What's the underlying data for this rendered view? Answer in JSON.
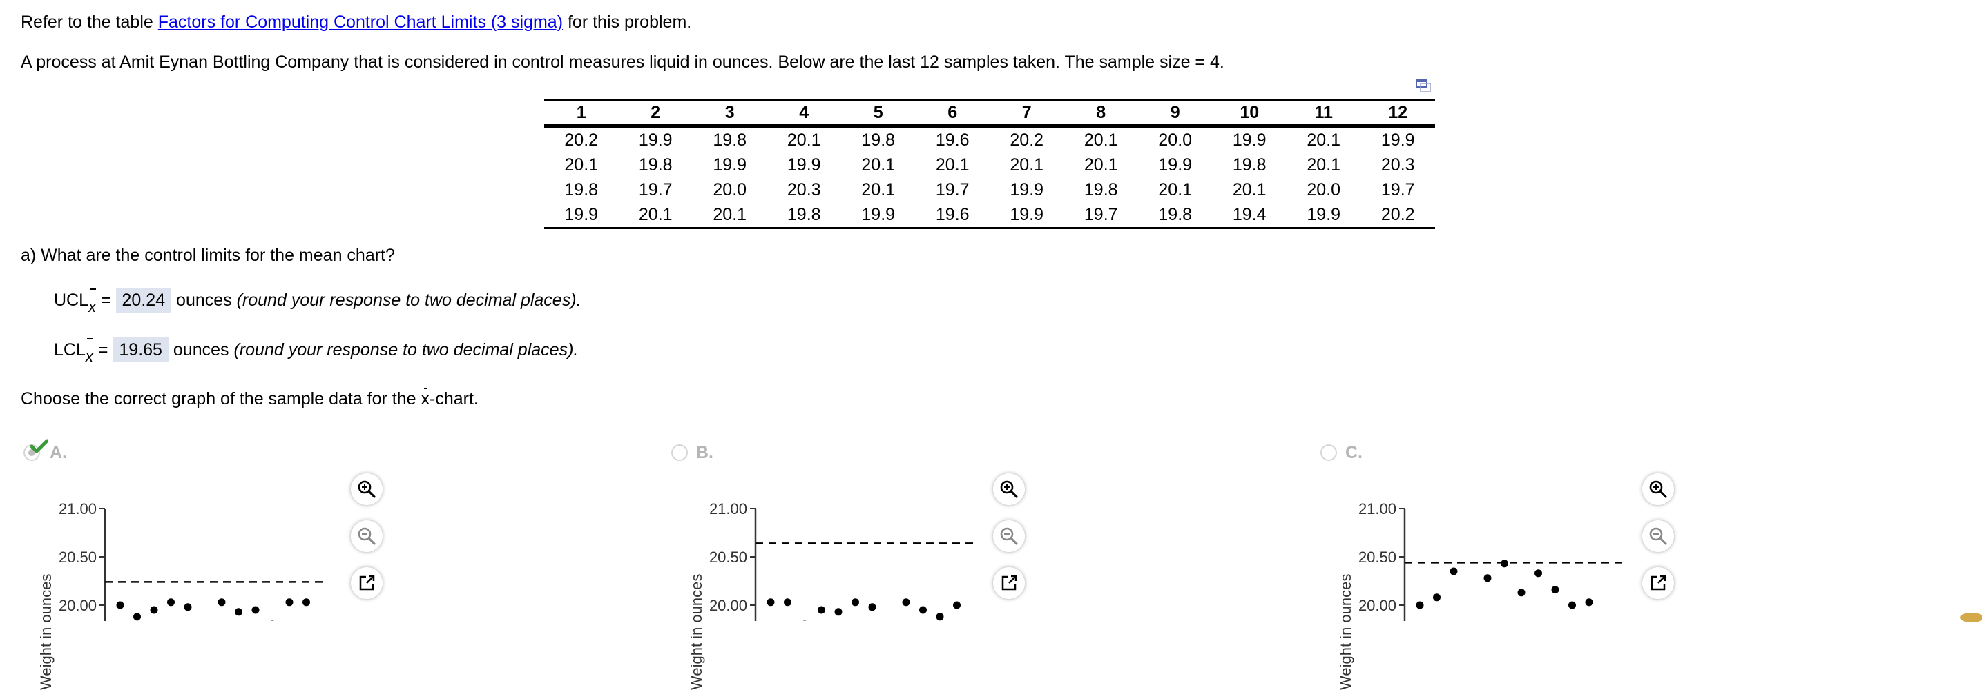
{
  "intro": {
    "prefix": "Refer to the table ",
    "link_text": "Factors for Computing Control Chart Limits (3 sigma)",
    "suffix": " for this problem."
  },
  "problem": {
    "text": "A process at Amit Eynan Bottling Company that is considered in control measures liquid in ounces. Below are the last 12 samples taken. The sample size = 4."
  },
  "table": {
    "headers": [
      "1",
      "2",
      "3",
      "4",
      "5",
      "6",
      "7",
      "8",
      "9",
      "10",
      "11",
      "12"
    ],
    "rows": [
      [
        "20.2",
        "19.9",
        "19.8",
        "20.1",
        "19.8",
        "19.6",
        "20.2",
        "20.1",
        "20.0",
        "19.9",
        "20.1",
        "19.9"
      ],
      [
        "20.1",
        "19.8",
        "19.9",
        "19.9",
        "20.1",
        "20.1",
        "20.1",
        "20.1",
        "19.9",
        "19.8",
        "20.1",
        "20.3"
      ],
      [
        "19.8",
        "19.7",
        "20.0",
        "20.3",
        "20.1",
        "19.7",
        "19.9",
        "19.8",
        "20.1",
        "20.1",
        "20.0",
        "19.7"
      ],
      [
        "19.9",
        "20.1",
        "20.1",
        "19.8",
        "19.9",
        "19.6",
        "19.9",
        "19.7",
        "19.8",
        "19.4",
        "19.9",
        "20.2"
      ]
    ]
  },
  "question_a": {
    "prompt": "a) What are the control limits for the mean chart?",
    "ucl": {
      "label": "UCL",
      "sub": "x",
      "eq": "=",
      "value": "20.24",
      "unit": "ounces",
      "hint": "(round your response to two decimal places)."
    },
    "lcl": {
      "label": "LCL",
      "sub": "x",
      "eq": "=",
      "value": "19.65",
      "unit": "ounces",
      "hint": "(round your response to two decimal places)."
    }
  },
  "choose": {
    "prefix": "Choose the correct graph of the sample data for the ",
    "x": "x",
    "suffix": "-chart."
  },
  "options": [
    {
      "letter": "A.",
      "selected": true,
      "correct": true
    },
    {
      "letter": "B.",
      "selected": false,
      "correct": false
    },
    {
      "letter": "C.",
      "selected": false,
      "correct": false
    }
  ],
  "colors": {
    "link": "#0000ee",
    "answer_bg": "#dde4f0",
    "check": "#3a9a3a",
    "option_label": "#b5b5b5"
  },
  "chart_data": [
    {
      "type": "scatter",
      "option": "A",
      "ylabel": "Weight in ounces",
      "yticks": [
        "21.00",
        "20.50",
        "20.00"
      ],
      "ylim_visible": [
        20.0,
        21.0
      ],
      "reference_line": {
        "style": "dashed",
        "y": 20.24
      },
      "x": [
        1,
        2,
        3,
        4,
        5,
        6,
        7,
        8,
        9,
        10,
        11,
        12
      ],
      "values": [
        20.0,
        19.88,
        19.95,
        20.03,
        19.98,
        19.75,
        20.03,
        19.93,
        19.95,
        19.8,
        20.03,
        20.03
      ]
    },
    {
      "type": "scatter",
      "option": "B",
      "ylabel": "Weight in ounces",
      "yticks": [
        "21.00",
        "20.50",
        "20.00"
      ],
      "ylim_visible": [
        20.0,
        21.0
      ],
      "reference_line": {
        "style": "dashed",
        "y": 20.64
      },
      "x": [
        1,
        2,
        3,
        4,
        5,
        6,
        7,
        8,
        9,
        10,
        11,
        12
      ],
      "values": [
        20.03,
        20.03,
        19.8,
        19.95,
        19.93,
        20.03,
        19.98,
        19.75,
        20.03,
        19.95,
        19.88,
        20.0
      ]
    },
    {
      "type": "scatter",
      "option": "C",
      "ylabel": "Weight in ounces",
      "yticks": [
        "21.00",
        "20.50",
        "20.00"
      ],
      "ylim_visible": [
        20.0,
        21.0
      ],
      "reference_line": {
        "style": "dashed",
        "y": 20.44
      },
      "x": [
        1,
        2,
        3,
        4,
        5,
        6,
        7,
        8,
        9,
        10,
        11,
        12
      ],
      "values": [
        20.0,
        20.08,
        20.35,
        null,
        20.28,
        20.43,
        20.13,
        20.33,
        20.16,
        20.0,
        20.03,
        null
      ]
    }
  ]
}
